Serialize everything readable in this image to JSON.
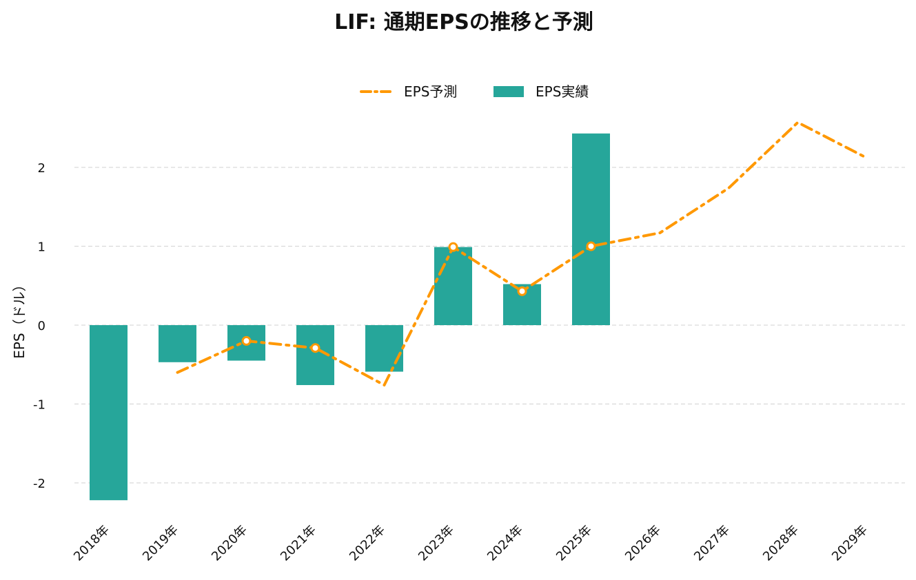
{
  "chart_data": {
    "type": "bar",
    "title": "LIF: 通期EPSの推移と予測",
    "ylabel": "EPS（ドル）",
    "xlabel": "",
    "categories": [
      "2018年",
      "2019年",
      "2020年",
      "2021年",
      "2022年",
      "2023年",
      "2024年",
      "2025年",
      "2026年",
      "2027年",
      "2028年",
      "2029年"
    ],
    "ylim": [
      -2.4,
      2.55
    ],
    "yticks": [
      -2,
      -1,
      0,
      1,
      2
    ],
    "ytick_labels": [
      "-2",
      "-1",
      "0",
      "1",
      "2"
    ],
    "grid": true,
    "legend_position": "top-center",
    "series": [
      {
        "name": "EPS実績",
        "type": "bar",
        "color": "#26a69a",
        "values": [
          -2.22,
          -0.47,
          -0.45,
          -0.76,
          -0.59,
          0.99,
          0.52,
          2.43,
          null,
          null,
          null,
          null
        ]
      },
      {
        "name": "EPS予測",
        "type": "line",
        "style": "dash-dot",
        "color": "#ff9800",
        "values": [
          null,
          -0.6,
          -0.2,
          -0.29,
          -0.76,
          0.99,
          0.43,
          1.0,
          1.17,
          1.74,
          2.57,
          2.12
        ],
        "markers": [
          false,
          false,
          true,
          true,
          false,
          true,
          true,
          true,
          false,
          false,
          false,
          false
        ]
      }
    ]
  }
}
